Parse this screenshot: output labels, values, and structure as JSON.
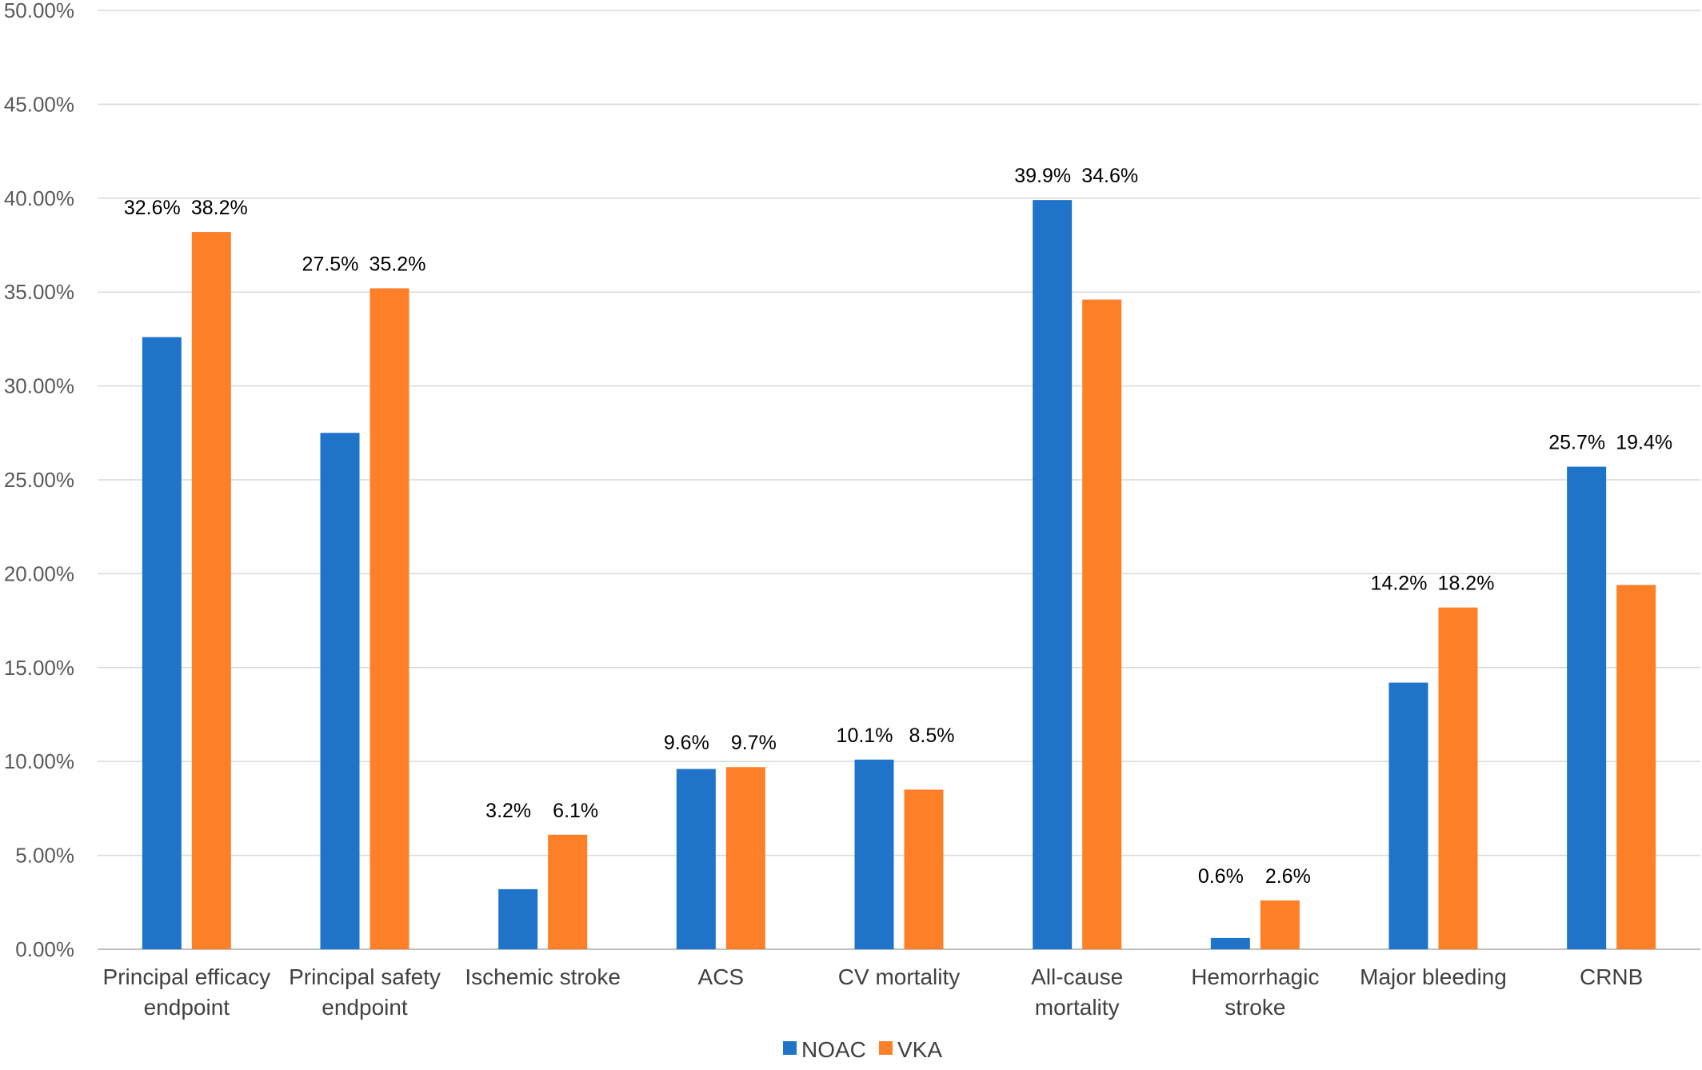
{
  "chart_data": {
    "type": "bar",
    "title": "",
    "xlabel": "",
    "ylabel": "",
    "categories": [
      [
        "Principal efficacy",
        "endpoint"
      ],
      [
        "Principal safety",
        "endpoint"
      ],
      [
        "Ischemic stroke"
      ],
      [
        "ACS"
      ],
      [
        "CV mortality"
      ],
      [
        "All-cause",
        "mortality"
      ],
      [
        "Hemorrhagic",
        "stroke"
      ],
      [
        "Major bleeding"
      ],
      [
        "CRNB"
      ]
    ],
    "series": [
      {
        "name": "NOAC",
        "color": "#1f73c8",
        "values": [
          32.6,
          27.5,
          3.2,
          9.6,
          10.1,
          39.9,
          0.6,
          14.2,
          25.7
        ],
        "labels": [
          "32.6%",
          "27.5%",
          "3.2%",
          "9.6%",
          "10.1%",
          "39.9%",
          "0.6%",
          "14.2%",
          "25.7%"
        ]
      },
      {
        "name": "VKA",
        "color": "#fd7f28",
        "values": [
          38.2,
          35.2,
          6.1,
          9.7,
          8.5,
          34.6,
          2.6,
          18.2,
          19.4
        ],
        "labels": [
          "38.2%",
          "35.2%",
          "6.1%",
          "9.7%",
          "8.5%",
          "34.6%",
          "2.6%",
          "18.2%",
          "19.4%"
        ]
      }
    ],
    "ylim": [
      0,
      50
    ],
    "yticks": [
      {
        "value": 0,
        "label": "0.00%"
      },
      {
        "value": 5,
        "label": "5.00%"
      },
      {
        "value": 10,
        "label": "10.00%"
      },
      {
        "value": 15,
        "label": "15.00%"
      },
      {
        "value": 20,
        "label": "20.00%"
      },
      {
        "value": 25,
        "label": "25.00%"
      },
      {
        "value": 30,
        "label": "30.00%"
      },
      {
        "value": 35,
        "label": "35.00%"
      },
      {
        "value": 40,
        "label": "40.00%"
      },
      {
        "value": 45,
        "label": "45.00%"
      },
      {
        "value": 50,
        "label": "50.00%"
      }
    ],
    "grid": true,
    "legend_position": "bottom",
    "grid_color": "#d9d9d9",
    "axis_color": "#bfbfbf"
  }
}
